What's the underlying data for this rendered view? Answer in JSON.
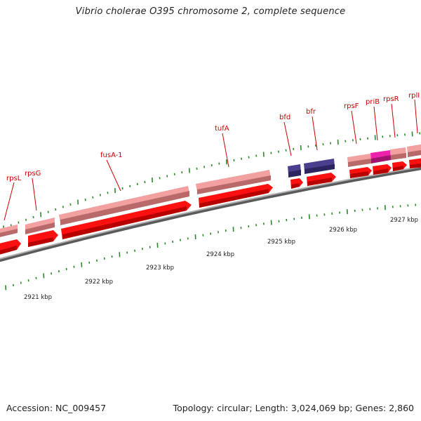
{
  "title": "Vibrio cholerae O395 chromosome 2, complete sequence",
  "footer": {
    "accession": "Accession: NC_009457",
    "summary": "Topology: circular; Length: 3,024,069 bp; Genes: 2,860"
  },
  "colors": {
    "gene_label": "#cc0000",
    "cds_arrow": "#ff0000",
    "gene_bar": "#f08f8f",
    "special_gene_bar": "#ee22aa",
    "tick": "#2a8a2a",
    "backbone": "#8a8a8a",
    "other_feature": "#4a3f8f"
  },
  "map": {
    "kbp_labels": [
      "2921 kbp",
      "2922 kbp",
      "2923 kbp",
      "2924 kbp",
      "2925 kbp",
      "2926 kbp",
      "2927 kbp"
    ],
    "genes": [
      {
        "name": "rpsL"
      },
      {
        "name": "rpsG"
      },
      {
        "name": "fusA-1"
      },
      {
        "name": "tufA"
      },
      {
        "name": "bfd"
      },
      {
        "name": "bfr"
      },
      {
        "name": "rpsF"
      },
      {
        "name": "priB"
      },
      {
        "name": "rpsR"
      },
      {
        "name": "rplI"
      }
    ]
  }
}
